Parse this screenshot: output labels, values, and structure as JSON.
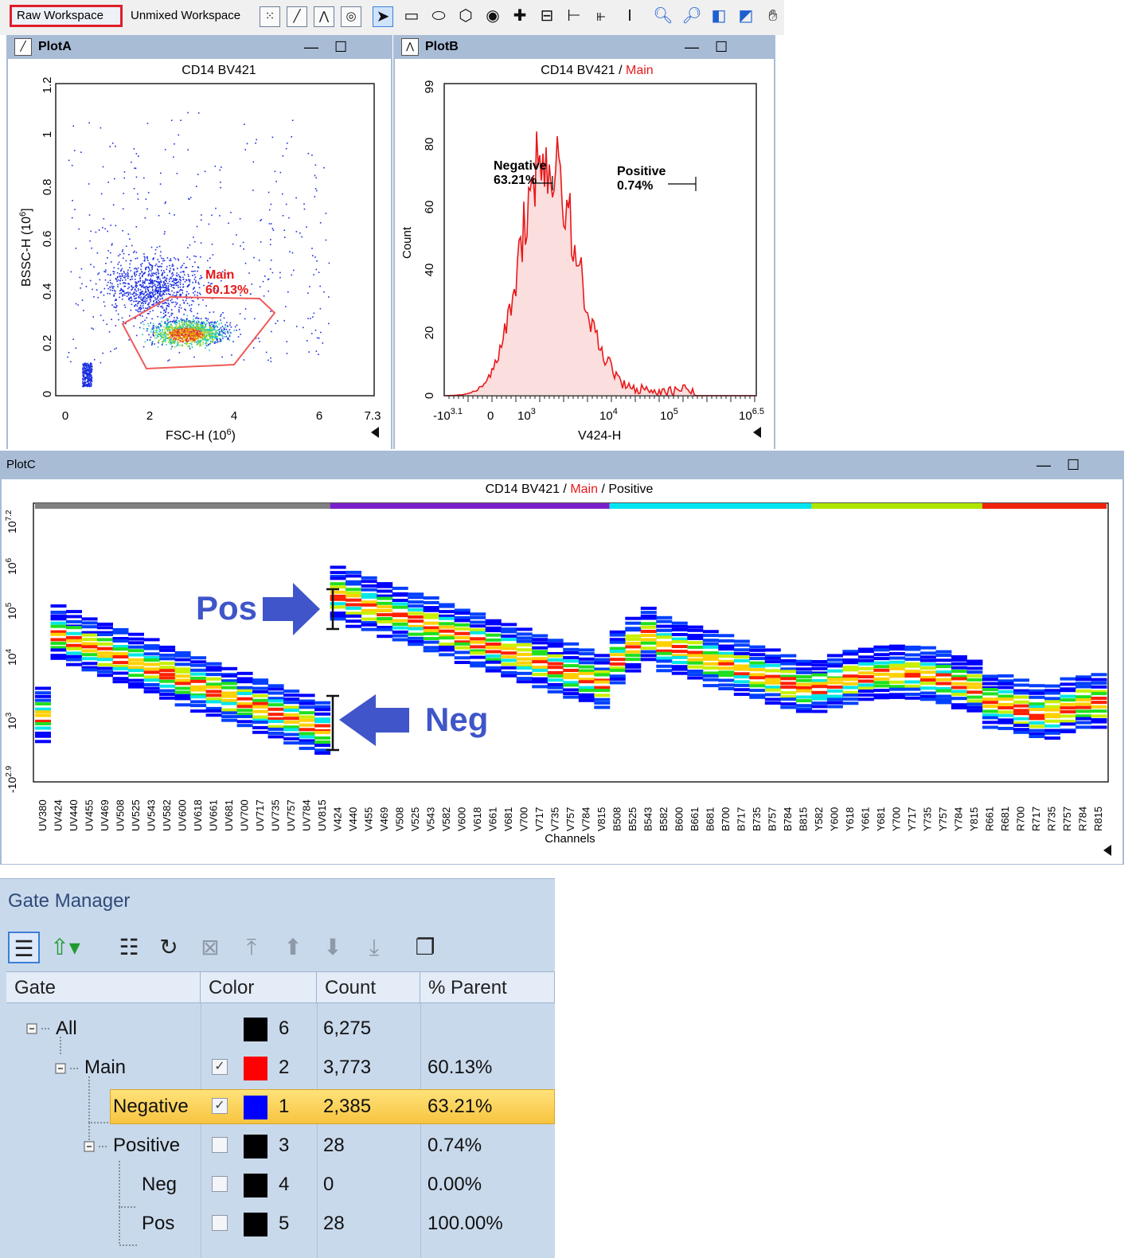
{
  "toolbar": {
    "raw_workspace": "Raw Workspace",
    "unmixed_workspace": "Unmixed Workspace",
    "icons": [
      "dot-plot-icon",
      "density-plot-icon",
      "histogram-icon",
      "contour-plot-icon",
      "pointer-icon",
      "rectangle-gate-icon",
      "ellipse-gate-icon",
      "polygon-gate-icon",
      "ring-gate-icon",
      "quadrant-gate-icon",
      "grid-gate-icon",
      "interval-gate-icon",
      "multi-interval-gate-icon",
      "range-gate-icon",
      "zoom-in-icon",
      "zoom-out-icon",
      "fit-view-icon",
      "expand-view-icon",
      "pan-hand-icon"
    ]
  },
  "plot_a": {
    "title": "PlotA",
    "caption": "CD14 BV421",
    "xlabel": "FSC-H  (10",
    "xlabel_sup": "6",
    "xlabel_end": ")",
    "ylabel": "BSSC-H  (10",
    "ylabel_sup": "6",
    "ylabel_end": "]",
    "gate_name": "Main",
    "gate_pct": "60.13%",
    "x_ticks": [
      "0",
      "2",
      "4",
      "6",
      "7.3"
    ],
    "y_ticks": [
      "0",
      "0.2",
      "0.4",
      "0.6",
      "0.8",
      "1",
      "1.2"
    ]
  },
  "plot_b": {
    "title": "PlotB",
    "caption_a": "CD14 BV421",
    "caption_sep": " / ",
    "caption_b": "Main",
    "xlabel": "V424-H",
    "ylabel": "Count",
    "neg_name": "Negative",
    "neg_pct": "63.21%",
    "pos_name": "Positive",
    "pos_pct": "0.74%",
    "y_ticks": [
      "0",
      "20",
      "40",
      "60",
      "80",
      "99"
    ],
    "x_ticks": [
      {
        "base": "-10",
        "sup": "3.1"
      },
      {
        "base": "0",
        "sup": ""
      },
      {
        "base": "10",
        "sup": "3"
      },
      {
        "base": "10",
        "sup": "4"
      },
      {
        "base": "10",
        "sup": "5"
      },
      {
        "base": "10",
        "sup": "6.5"
      }
    ]
  },
  "plot_c": {
    "title": "PlotC",
    "caption_a": "CD14 BV421",
    "caption_b": "Main",
    "caption_c": "Positive",
    "sep": " / ",
    "xlabel": "Channels",
    "pos_label": "Pos",
    "neg_label": "Neg",
    "y_ticks": [
      {
        "base": "10",
        "sup": "7.2"
      },
      {
        "base": "10",
        "sup": "6"
      },
      {
        "base": "10",
        "sup": "5"
      },
      {
        "base": "10",
        "sup": "4"
      },
      {
        "base": "10",
        "sup": "3"
      },
      {
        "base": "-10",
        "sup": "2.9"
      }
    ],
    "channels": [
      "UV380",
      "UV424",
      "UV440",
      "UV455",
      "UV469",
      "UV508",
      "UV525",
      "UV543",
      "UV582",
      "UV600",
      "UV618",
      "UV661",
      "UV681",
      "UV700",
      "UV717",
      "UV735",
      "UV757",
      "UV784",
      "UV815",
      "V424",
      "V440",
      "V455",
      "V469",
      "V508",
      "V525",
      "V543",
      "V582",
      "V600",
      "V618",
      "V661",
      "V681",
      "V700",
      "V717",
      "V735",
      "V757",
      "V784",
      "V815",
      "B508",
      "B525",
      "B543",
      "B582",
      "B600",
      "B661",
      "B681",
      "B700",
      "B717",
      "B735",
      "B757",
      "B784",
      "B815",
      "Y582",
      "Y600",
      "Y618",
      "Y661",
      "Y681",
      "Y700",
      "Y717",
      "Y735",
      "Y757",
      "Y784",
      "Y815",
      "R661",
      "R681",
      "R700",
      "R717",
      "R735",
      "R757",
      "R784",
      "R815"
    ],
    "laser_colors": [
      "#808080",
      "#7a1fc9",
      "#00e5f0",
      "#aee600",
      "#f0220c"
    ]
  },
  "gate_manager": {
    "title": "Gate Manager",
    "headers": {
      "gate": "Gate",
      "color": "Color",
      "count": "Count",
      "pct": "% Parent"
    },
    "rows": [
      {
        "name": "All",
        "color_hex": "#000000",
        "color_num": "6",
        "count": "6,275",
        "pct": "",
        "checked": ""
      },
      {
        "name": "Main",
        "color_hex": "#ff0000",
        "color_num": "2",
        "count": "3,773",
        "pct": "60.13%",
        "checked": "✓"
      },
      {
        "name": "Negative",
        "color_hex": "#0000ff",
        "color_num": "1",
        "count": "2,385",
        "pct": "63.21%",
        "checked": "✓"
      },
      {
        "name": "Positive",
        "color_hex": "#000000",
        "color_num": "3",
        "count": "28",
        "pct": "0.74%",
        "checked": ""
      },
      {
        "name": "Neg",
        "color_hex": "#000000",
        "color_num": "4",
        "count": "0",
        "pct": "0.00%",
        "checked": ""
      },
      {
        "name": "Pos",
        "color_hex": "#000000",
        "color_num": "5",
        "count": "28",
        "pct": "100.00%",
        "checked": ""
      }
    ]
  }
}
